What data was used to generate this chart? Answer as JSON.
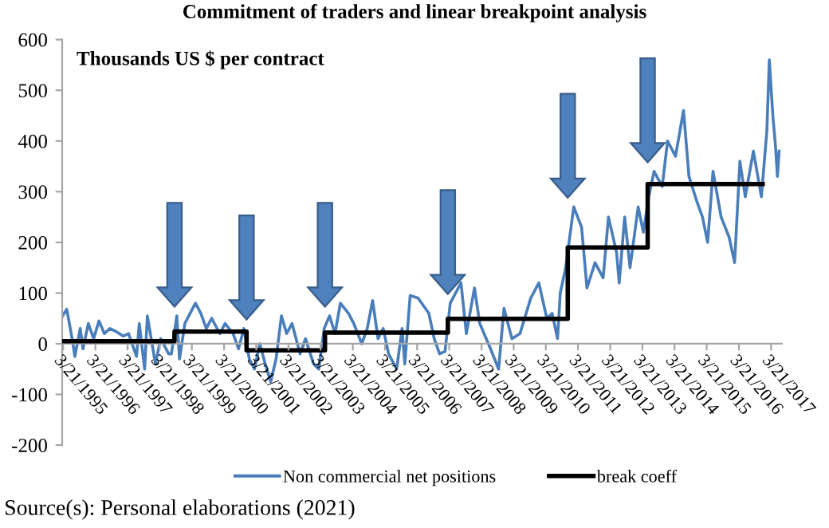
{
  "chart_data": {
    "type": "line",
    "title": "Commitment of traders and linear breakpoint analysis",
    "ylabel": "Thousands US $ per contract",
    "annotations": [
      "Source(s): Personal elaborations (2021)"
    ],
    "xlim": [
      "1995-03-10",
      "2017-07-20"
    ],
    "ylim": [
      -200,
      600
    ],
    "yticks": [
      -200,
      -100,
      0,
      100,
      200,
      300,
      400,
      500,
      600
    ],
    "xticks": [
      {
        "value": "1995-03-21",
        "label": "3/21/1995"
      },
      {
        "value": "1996-03-21",
        "label": "3/21/1996"
      },
      {
        "value": "1997-03-21",
        "label": "3/21/1997"
      },
      {
        "value": "1998-03-21",
        "label": "3/21/1998"
      },
      {
        "value": "1999-03-21",
        "label": "3/21/1999"
      },
      {
        "value": "2000-03-21",
        "label": "3/21/2000"
      },
      {
        "value": "2001-03-21",
        "label": "3/21/2001"
      },
      {
        "value": "2002-03-21",
        "label": "3/21/2002"
      },
      {
        "value": "2003-03-21",
        "label": "3/21/2003"
      },
      {
        "value": "2004-03-21",
        "label": "3/21/2004"
      },
      {
        "value": "2005-03-21",
        "label": "3/21/2005"
      },
      {
        "value": "2006-03-21",
        "label": "3/21/2006"
      },
      {
        "value": "2007-03-21",
        "label": "3/21/2007"
      },
      {
        "value": "2008-03-21",
        "label": "3/21/2008"
      },
      {
        "value": "2009-03-21",
        "label": "3/21/2009"
      },
      {
        "value": "2010-03-21",
        "label": "3/21/2010"
      },
      {
        "value": "2011-03-21",
        "label": "3/21/2011"
      },
      {
        "value": "2012-03-21",
        "label": "3/21/2012"
      },
      {
        "value": "2013-03-21",
        "label": "3/21/2013"
      },
      {
        "value": "2014-03-21",
        "label": "3/21/2014"
      },
      {
        "value": "2015-03-21",
        "label": "3/21/2015"
      },
      {
        "value": "2016-03-21",
        "label": "3/21/2016"
      },
      {
        "value": "2017-03-21",
        "label": "3/21/2017"
      }
    ],
    "grid": false,
    "legend": "bottom",
    "marker": "none",
    "line_style": "solid",
    "series": [
      {
        "name": "Non commercial net positions",
        "color": "#4a7ebb",
        "type": "line",
        "x": [
          "1995-03-15",
          "1995-05",
          "1995-07",
          "1995-08",
          "1995-10",
          "1995-11",
          "1996-01",
          "1996-03",
          "1996-05",
          "1996-07",
          "1996-09",
          "1996-11",
          "1997-02",
          "1997-04",
          "1997-07",
          "1997-08",
          "1997-10",
          "1997-11",
          "1998-02",
          "1998-04",
          "1998-07",
          "1998-08",
          "1998-10",
          "1998-11",
          "1999-01",
          "1999-03",
          "1999-05",
          "1999-07",
          "1999-09",
          "1999-11",
          "2000-02",
          "2000-04",
          "2000-07",
          "2000-09",
          "2000-11",
          "2001-01",
          "2001-03",
          "2001-05",
          "2001-07",
          "2001-09",
          "2001-11",
          "2002-01",
          "2002-03",
          "2002-05",
          "2002-08",
          "2002-10",
          "2003-01",
          "2003-03",
          "2003-05",
          "2003-07",
          "2003-09",
          "2003-11",
          "2004-02",
          "2004-04",
          "2004-07",
          "2004-09",
          "2004-11",
          "2005-01",
          "2005-03",
          "2005-05",
          "2005-08",
          "2005-10",
          "2005-11",
          "2006-01",
          "2006-04",
          "2006-08",
          "2006-10",
          "2006-12",
          "2007-02",
          "2007-04",
          "2007-08",
          "2007-10",
          "2008-01",
          "2008-03",
          "2008-07",
          "2008-10",
          "2008-12",
          "2009-03",
          "2009-06",
          "2009-10",
          "2010-01",
          "2010-04",
          "2010-06",
          "2010-08",
          "2010-09",
          "2010-11",
          "2011-02",
          "2011-05",
          "2011-07",
          "2011-10",
          "2012-01",
          "2012-03",
          "2012-06",
          "2012-07",
          "2012-09",
          "2012-11",
          "2013-02",
          "2013-04",
          "2013-06",
          "2013-08",
          "2013-11",
          "2014-01",
          "2014-04",
          "2014-07",
          "2014-09",
          "2014-12",
          "2015-02",
          "2015-04",
          "2015-06",
          "2015-09",
          "2015-12",
          "2016-02",
          "2016-04",
          "2016-06",
          "2016-09",
          "2016-12",
          "2017-02-01",
          "2017-03-01",
          "2017-04-10",
          "2017-05-10",
          "2017-06-01",
          "2017-06-20"
        ],
        "values": [
          55,
          68,
          10,
          -25,
          30,
          -10,
          40,
          10,
          45,
          20,
          30,
          25,
          15,
          20,
          -25,
          40,
          -50,
          55,
          -40,
          10,
          -20,
          -20,
          55,
          -30,
          40,
          60,
          80,
          60,
          30,
          50,
          20,
          40,
          20,
          -10,
          30,
          -30,
          -50,
          0,
          -40,
          -75,
          -30,
          55,
          20,
          40,
          -20,
          10,
          -40,
          -50,
          30,
          55,
          20,
          80,
          60,
          40,
          0,
          30,
          85,
          10,
          30,
          -20,
          -50,
          30,
          -40,
          95,
          90,
          60,
          10,
          -20,
          -15,
          80,
          120,
          20,
          110,
          40,
          -10,
          -50,
          70,
          10,
          20,
          90,
          120,
          50,
          60,
          10,
          100,
          150,
          270,
          230,
          110,
          160,
          130,
          250,
          180,
          120,
          250,
          150,
          270,
          220,
          290,
          340,
          310,
          400,
          370,
          460,
          330,
          280,
          250,
          200,
          340,
          250,
          210,
          160,
          360,
          290,
          380,
          290,
          420,
          560,
          450,
          390,
          330,
          380
        ]
      },
      {
        "name": "break coeff",
        "color": "#000000",
        "type": "step",
        "x": [
          "1995-03-10",
          "1998-09-05",
          "2000-12-01",
          "2003-05-10",
          "2007-03-05",
          "2010-11-25",
          "2013-05-20",
          "2016-12-15"
        ],
        "values": [
          5,
          24,
          -13,
          22,
          49,
          190,
          315,
          315
        ]
      }
    ]
  }
}
